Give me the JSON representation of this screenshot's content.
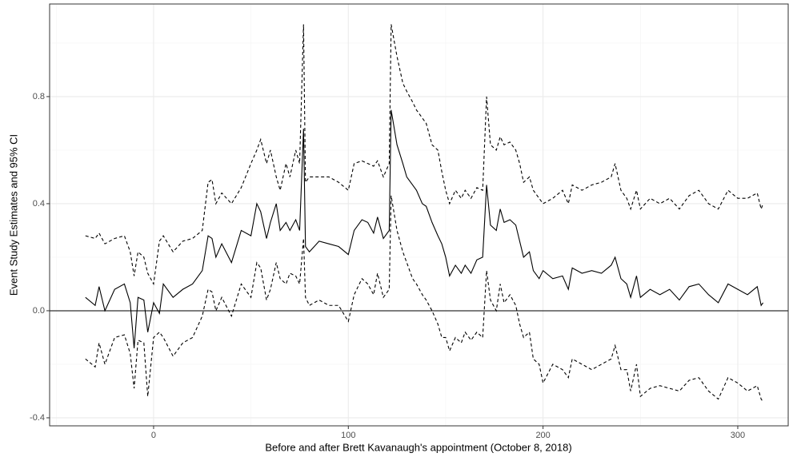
{
  "chart_data": {
    "type": "line",
    "xlabel": "Before and after Brett Kavanaugh's appointment (October 8, 2018)",
    "ylabel": "Event Study Estimates and 95% CI",
    "xlim": [
      -53.4,
      325.9
    ],
    "ylim": [
      -0.43,
      1.146
    ],
    "xticks": [
      0,
      100,
      200,
      300
    ],
    "yticks": [
      {
        "value": -0.4,
        "label": "-0.4"
      },
      {
        "value": 0,
        "label": "0.0"
      },
      0.4,
      0.8
    ],
    "grid": true,
    "zero_line": true,
    "x": [
      -35,
      -30,
      -28,
      -25,
      -20,
      -15,
      -12,
      -10,
      -8,
      -5,
      -3,
      0,
      3,
      5,
      10,
      15,
      20,
      25,
      28,
      30,
      32,
      35,
      40,
      45,
      50,
      53,
      55,
      58,
      60,
      63,
      65,
      68,
      70,
      73,
      75,
      77,
      78,
      80,
      85,
      90,
      95,
      100,
      103,
      107,
      110,
      113,
      115,
      118,
      121,
      122,
      125,
      128,
      130,
      133,
      135,
      138,
      140,
      143,
      146,
      148,
      150,
      152,
      155,
      158,
      160,
      163,
      166,
      169,
      171,
      173,
      176,
      178,
      180,
      183,
      186,
      188,
      190,
      193,
      195,
      198,
      200,
      205,
      210,
      213,
      215,
      220,
      225,
      230,
      235,
      237,
      240,
      243,
      245,
      248,
      250,
      255,
      260,
      265,
      270,
      275,
      280,
      285,
      290,
      295,
      300,
      305,
      310,
      312,
      313
    ],
    "series": [
      {
        "color": "#000000",
        "linestyle": "solid",
        "values": [
          0.05,
          0.02,
          0.09,
          0.0,
          0.08,
          0.1,
          0.03,
          -0.14,
          0.05,
          0.04,
          -0.08,
          0.03,
          -0.01,
          0.1,
          0.05,
          0.08,
          0.1,
          0.15,
          0.28,
          0.27,
          0.2,
          0.25,
          0.18,
          0.3,
          0.28,
          0.4,
          0.37,
          0.27,
          0.33,
          0.4,
          0.3,
          0.33,
          0.3,
          0.34,
          0.3,
          0.68,
          0.24,
          0.22,
          0.26,
          0.25,
          0.24,
          0.21,
          0.3,
          0.34,
          0.33,
          0.29,
          0.35,
          0.27,
          0.3,
          0.75,
          0.62,
          0.55,
          0.5,
          0.47,
          0.45,
          0.4,
          0.39,
          0.33,
          0.28,
          0.25,
          0.2,
          0.13,
          0.17,
          0.14,
          0.17,
          0.14,
          0.19,
          0.2,
          0.47,
          0.32,
          0.3,
          0.38,
          0.33,
          0.34,
          0.32,
          0.26,
          0.2,
          0.22,
          0.15,
          0.12,
          0.15,
          0.12,
          0.13,
          0.08,
          0.16,
          0.14,
          0.15,
          0.14,
          0.17,
          0.2,
          0.12,
          0.1,
          0.05,
          0.13,
          0.05,
          0.08,
          0.06,
          0.08,
          0.04,
          0.09,
          0.1,
          0.06,
          0.03,
          0.1,
          0.08,
          0.06,
          0.09,
          0.02,
          0.03
        ]
      },
      {
        "color": "#000000",
        "linestyle": "dashed",
        "values": [
          0.28,
          0.27,
          0.29,
          0.25,
          0.27,
          0.28,
          0.22,
          0.13,
          0.22,
          0.2,
          0.14,
          0.1,
          0.26,
          0.28,
          0.22,
          0.26,
          0.27,
          0.3,
          0.48,
          0.49,
          0.4,
          0.44,
          0.4,
          0.46,
          0.55,
          0.6,
          0.64,
          0.55,
          0.6,
          0.5,
          0.45,
          0.55,
          0.5,
          0.6,
          0.55,
          1.07,
          0.48,
          0.5,
          0.5,
          0.5,
          0.48,
          0.45,
          0.55,
          0.56,
          0.55,
          0.54,
          0.56,
          0.5,
          0.55,
          1.07,
          0.95,
          0.85,
          0.82,
          0.78,
          0.75,
          0.72,
          0.7,
          0.62,
          0.6,
          0.52,
          0.45,
          0.4,
          0.45,
          0.42,
          0.45,
          0.42,
          0.46,
          0.45,
          0.8,
          0.62,
          0.6,
          0.65,
          0.62,
          0.63,
          0.6,
          0.55,
          0.48,
          0.5,
          0.45,
          0.42,
          0.4,
          0.42,
          0.45,
          0.4,
          0.47,
          0.45,
          0.47,
          0.48,
          0.5,
          0.55,
          0.45,
          0.42,
          0.38,
          0.45,
          0.38,
          0.42,
          0.4,
          0.42,
          0.38,
          0.43,
          0.45,
          0.4,
          0.38,
          0.45,
          0.42,
          0.42,
          0.44,
          0.38,
          0.4
        ]
      },
      {
        "color": "#000000",
        "linestyle": "dashed",
        "values": [
          -0.18,
          -0.21,
          -0.12,
          -0.2,
          -0.1,
          -0.09,
          -0.16,
          -0.29,
          -0.11,
          -0.12,
          -0.32,
          -0.1,
          -0.08,
          -0.1,
          -0.17,
          -0.12,
          -0.1,
          -0.02,
          0.08,
          0.07,
          0.0,
          0.05,
          -0.02,
          0.1,
          0.05,
          0.18,
          0.16,
          0.04,
          0.08,
          0.18,
          0.12,
          0.1,
          0.14,
          0.13,
          0.1,
          0.27,
          0.05,
          0.02,
          0.04,
          0.02,
          0.02,
          -0.04,
          0.06,
          0.12,
          0.1,
          0.06,
          0.14,
          0.05,
          0.08,
          0.43,
          0.3,
          0.22,
          0.18,
          0.12,
          0.1,
          0.06,
          0.04,
          0.0,
          -0.05,
          -0.1,
          -0.1,
          -0.15,
          -0.1,
          -0.12,
          -0.08,
          -0.11,
          -0.08,
          -0.1,
          0.15,
          0.04,
          0.0,
          0.1,
          0.03,
          0.06,
          0.02,
          -0.05,
          -0.1,
          -0.08,
          -0.18,
          -0.2,
          -0.27,
          -0.2,
          -0.22,
          -0.25,
          -0.18,
          -0.2,
          -0.22,
          -0.2,
          -0.18,
          -0.13,
          -0.22,
          -0.22,
          -0.3,
          -0.2,
          -0.32,
          -0.29,
          -0.28,
          -0.29,
          -0.3,
          -0.26,
          -0.25,
          -0.3,
          -0.33,
          -0.25,
          -0.27,
          -0.3,
          -0.28,
          -0.33,
          -0.34
        ]
      }
    ]
  }
}
